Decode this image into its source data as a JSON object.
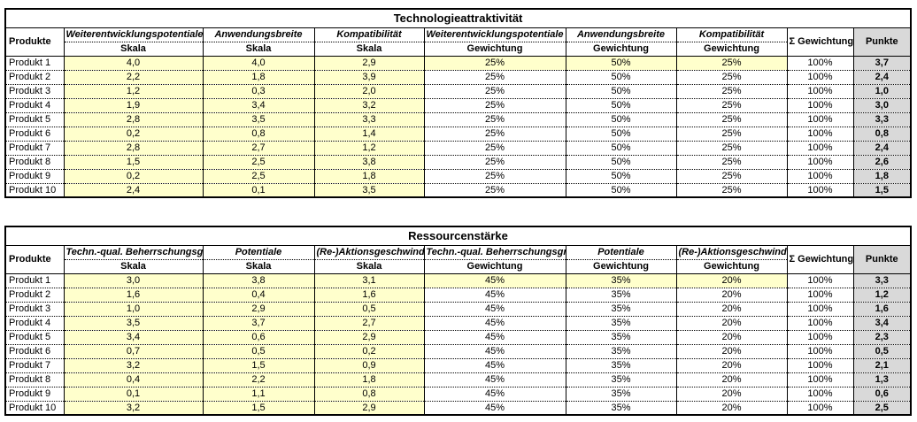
{
  "colors": {
    "input_yellow": "#FFFFCC",
    "result_gray": "#D9D9D9",
    "border_black": "#000000"
  },
  "tables": [
    {
      "title": "Technologieattraktivität",
      "products_header": "Produkte",
      "criteria": [
        "Weiterentwicklungspotentiale",
        "Anwendungsbreite",
        "Kompatibilität"
      ],
      "skala_label": "Skala",
      "gewichtung_label": "Gewichtung",
      "sum_header": "Σ Gewichtung",
      "punkte_header": "Punkte",
      "rows": [
        {
          "product": "Produkt 1",
          "skala": [
            "4,0",
            "4,0",
            "2,9"
          ],
          "gewichtung": [
            "25%",
            "50%",
            "25%"
          ],
          "sum": "100%",
          "punkte": "3,7"
        },
        {
          "product": "Produkt 2",
          "skala": [
            "2,2",
            "1,8",
            "3,9"
          ],
          "gewichtung": [
            "25%",
            "50%",
            "25%"
          ],
          "sum": "100%",
          "punkte": "2,4"
        },
        {
          "product": "Produkt 3",
          "skala": [
            "1,2",
            "0,3",
            "2,0"
          ],
          "gewichtung": [
            "25%",
            "50%",
            "25%"
          ],
          "sum": "100%",
          "punkte": "1,0"
        },
        {
          "product": "Produkt 4",
          "skala": [
            "1,9",
            "3,4",
            "3,2"
          ],
          "gewichtung": [
            "25%",
            "50%",
            "25%"
          ],
          "sum": "100%",
          "punkte": "3,0"
        },
        {
          "product": "Produkt 5",
          "skala": [
            "2,8",
            "3,5",
            "3,3"
          ],
          "gewichtung": [
            "25%",
            "50%",
            "25%"
          ],
          "sum": "100%",
          "punkte": "3,3"
        },
        {
          "product": "Produkt 6",
          "skala": [
            "0,2",
            "0,8",
            "1,4"
          ],
          "gewichtung": [
            "25%",
            "50%",
            "25%"
          ],
          "sum": "100%",
          "punkte": "0,8"
        },
        {
          "product": "Produkt 7",
          "skala": [
            "2,8",
            "2,7",
            "1,2"
          ],
          "gewichtung": [
            "25%",
            "50%",
            "25%"
          ],
          "sum": "100%",
          "punkte": "2,4"
        },
        {
          "product": "Produkt 8",
          "skala": [
            "1,5",
            "2,5",
            "3,8"
          ],
          "gewichtung": [
            "25%",
            "50%",
            "25%"
          ],
          "sum": "100%",
          "punkte": "2,6"
        },
        {
          "product": "Produkt 9",
          "skala": [
            "0,2",
            "2,5",
            "1,8"
          ],
          "gewichtung": [
            "25%",
            "50%",
            "25%"
          ],
          "sum": "100%",
          "punkte": "1,8"
        },
        {
          "product": "Produkt 10",
          "skala": [
            "2,4",
            "0,1",
            "3,5"
          ],
          "gewichtung": [
            "25%",
            "50%",
            "25%"
          ],
          "sum": "100%",
          "punkte": "1,5"
        }
      ]
    },
    {
      "title": "Ressourcenstärke",
      "products_header": "Produkte",
      "criteria": [
        "Techn.-qual. Beherrschungsgrad",
        "Potentiale",
        "(Re-)Aktionsgeschwind."
      ],
      "skala_label": "Skala",
      "gewichtung_label": "Gewichtung",
      "sum_header": "Σ Gewichtung",
      "punkte_header": "Punkte",
      "rows": [
        {
          "product": "Produkt 1",
          "skala": [
            "3,0",
            "3,8",
            "3,1"
          ],
          "gewichtung": [
            "45%",
            "35%",
            "20%"
          ],
          "sum": "100%",
          "punkte": "3,3"
        },
        {
          "product": "Produkt 2",
          "skala": [
            "1,6",
            "0,4",
            "1,6"
          ],
          "gewichtung": [
            "45%",
            "35%",
            "20%"
          ],
          "sum": "100%",
          "punkte": "1,2"
        },
        {
          "product": "Produkt 3",
          "skala": [
            "1,0",
            "2,9",
            "0,5"
          ],
          "gewichtung": [
            "45%",
            "35%",
            "20%"
          ],
          "sum": "100%",
          "punkte": "1,6"
        },
        {
          "product": "Produkt 4",
          "skala": [
            "3,5",
            "3,7",
            "2,7"
          ],
          "gewichtung": [
            "45%",
            "35%",
            "20%"
          ],
          "sum": "100%",
          "punkte": "3,4"
        },
        {
          "product": "Produkt 5",
          "skala": [
            "3,4",
            "0,6",
            "2,9"
          ],
          "gewichtung": [
            "45%",
            "35%",
            "20%"
          ],
          "sum": "100%",
          "punkte": "2,3"
        },
        {
          "product": "Produkt 6",
          "skala": [
            "0,7",
            "0,5",
            "0,2"
          ],
          "gewichtung": [
            "45%",
            "35%",
            "20%"
          ],
          "sum": "100%",
          "punkte": "0,5"
        },
        {
          "product": "Produkt 7",
          "skala": [
            "3,2",
            "1,5",
            "0,9"
          ],
          "gewichtung": [
            "45%",
            "35%",
            "20%"
          ],
          "sum": "100%",
          "punkte": "2,1"
        },
        {
          "product": "Produkt 8",
          "skala": [
            "0,4",
            "2,2",
            "1,8"
          ],
          "gewichtung": [
            "45%",
            "35%",
            "20%"
          ],
          "sum": "100%",
          "punkte": "1,3"
        },
        {
          "product": "Produkt 9",
          "skala": [
            "0,1",
            "1,1",
            "0,8"
          ],
          "gewichtung": [
            "45%",
            "35%",
            "20%"
          ],
          "sum": "100%",
          "punkte": "0,6"
        },
        {
          "product": "Produkt 10",
          "skala": [
            "3,2",
            "1,5",
            "2,9"
          ],
          "gewichtung": [
            "45%",
            "35%",
            "20%"
          ],
          "sum": "100%",
          "punkte": "2,5"
        }
      ]
    }
  ]
}
